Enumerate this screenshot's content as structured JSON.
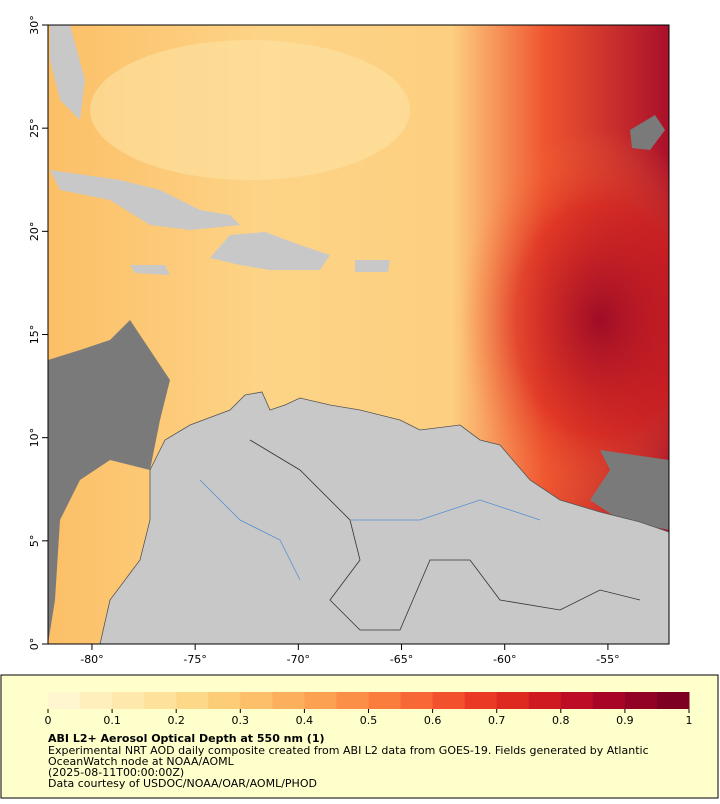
{
  "map": {
    "xlim": [
      -82.13,
      -52.04
    ],
    "ylim": [
      0,
      30
    ],
    "xticks": [
      {
        "value": -80,
        "label": "-80°"
      },
      {
        "value": -75,
        "label": "-75°"
      },
      {
        "value": -70,
        "label": "-70°"
      },
      {
        "value": -65,
        "label": "-65°"
      },
      {
        "value": -60,
        "label": "-60°"
      },
      {
        "value": -55,
        "label": "-55°"
      }
    ],
    "yticks": [
      {
        "value": 0,
        "label": "0°"
      },
      {
        "value": 5,
        "label": "5°"
      },
      {
        "value": 10,
        "label": "10°"
      },
      {
        "value": 15,
        "label": "15°"
      },
      {
        "value": 20,
        "label": "20°"
      },
      {
        "value": 25,
        "label": "25°"
      },
      {
        "value": 30,
        "label": "30°"
      }
    ]
  },
  "colorbar": {
    "lim": [
      0,
      1
    ],
    "ticks": [
      0,
      0.1,
      0.2,
      0.3,
      0.4,
      0.5,
      0.6,
      0.7,
      0.8,
      0.9,
      1
    ],
    "colors": [
      "#fff6cf",
      "#ffefbd",
      "#fee8ab",
      "#fee19a",
      "#fdd889",
      "#fdcc77",
      "#fdbf6a",
      "#fcb05e",
      "#fca052",
      "#fc8f47",
      "#fb7d3e",
      "#f86736",
      "#f3512e",
      "#ea3a26",
      "#de2921",
      "#cf1a22",
      "#bd0c26",
      "#a80526",
      "#920224",
      "#7d0022"
    ]
  },
  "caption": {
    "title": "ABI L2+ Aerosol Optical Depth at 550 nm (1)",
    "lines": [
      "Experimental NRT AOD daily composite created from ABI L2 data from GOES-19. Fields generated by Atlantic",
      "OceanWatch node at NOAA/AOML",
      "(2025-08-11T00:00:00Z)",
      "Data courtesy of USDOC/NOAA/OAR/AOML/PHOD"
    ]
  }
}
